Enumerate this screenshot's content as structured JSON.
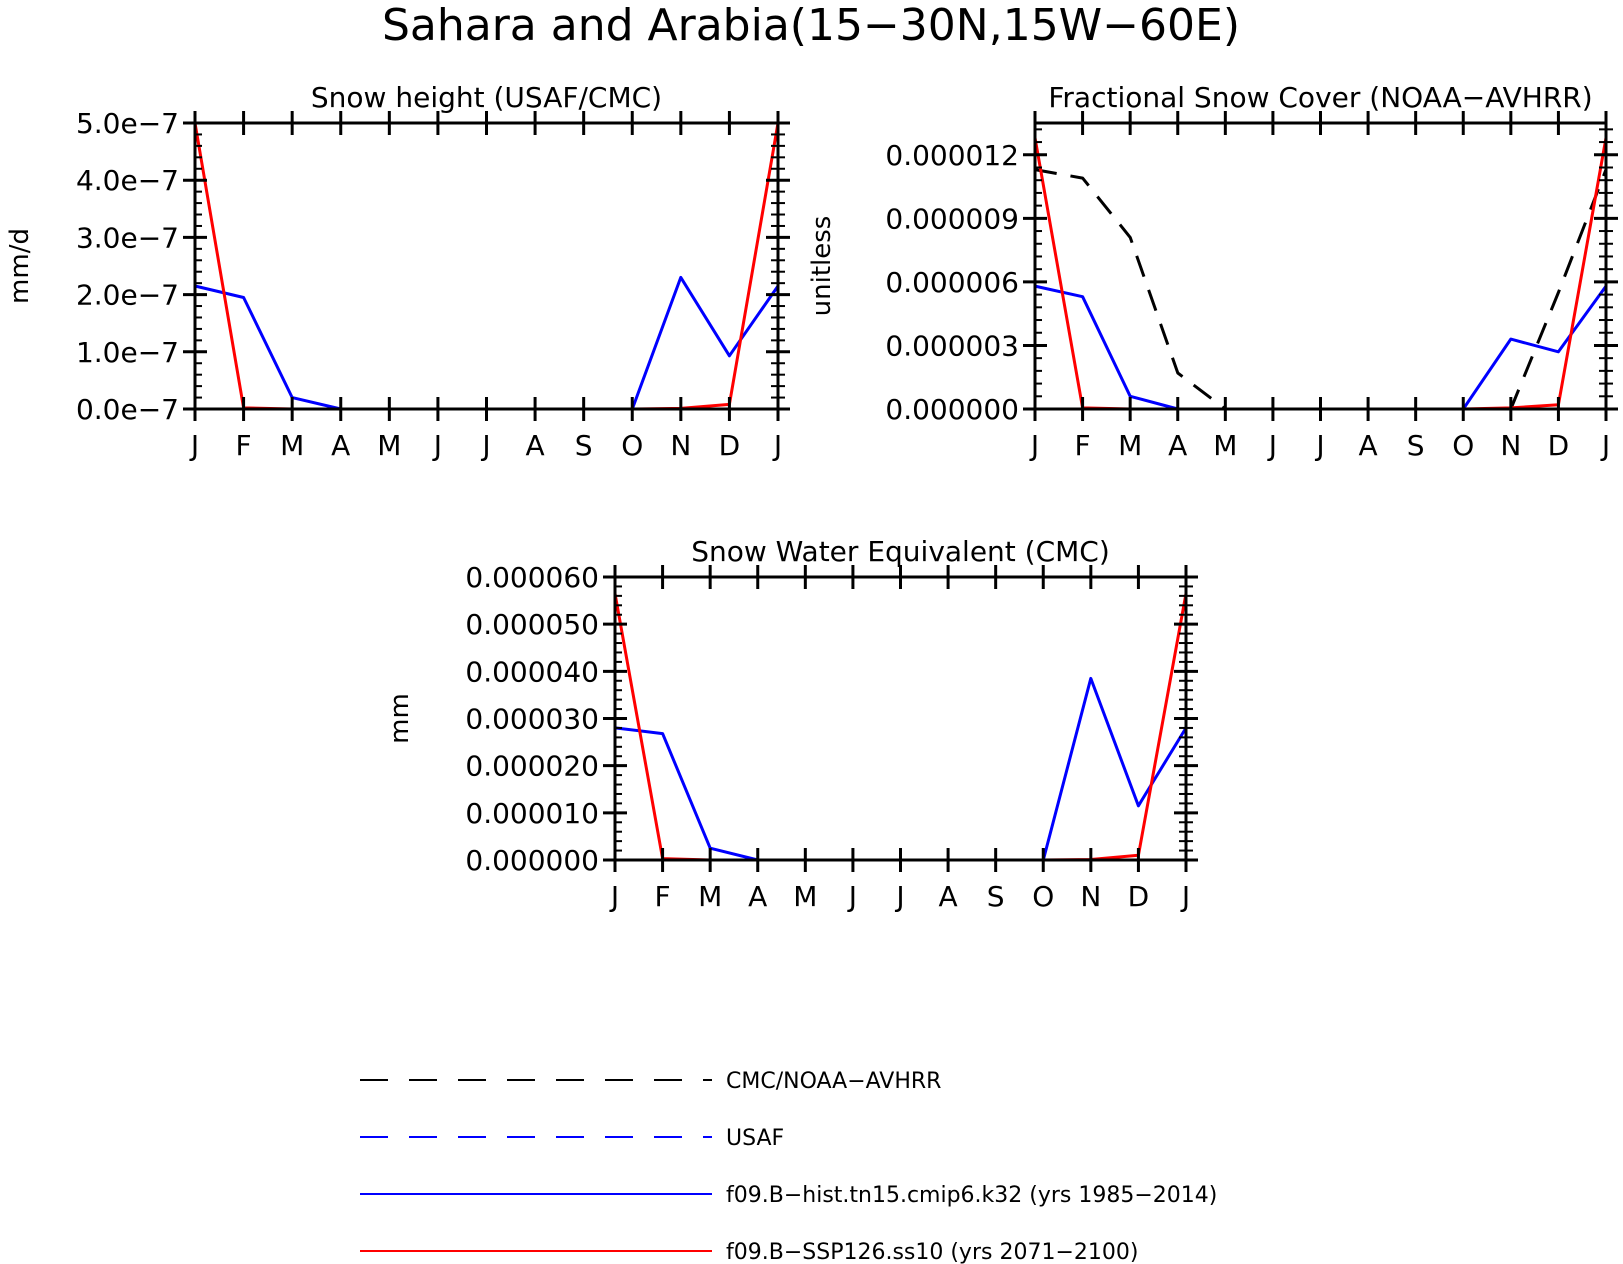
{
  "page": {
    "title": "Sahara and Arabia(15−30N,15W−60E)"
  },
  "colors": {
    "axes": "#000000",
    "obs_cmc": "#000000",
    "obs_usaf": "#0000ff",
    "hist": "#0000ff",
    "ssp": "#ff0000"
  },
  "chart_data": [
    {
      "type": "line",
      "title": "Snow height (USAF/CMC)",
      "ylabel": "mm/d",
      "xlabel": "",
      "categories": [
        "J",
        "F",
        "M",
        "A",
        "M",
        "J",
        "J",
        "A",
        "S",
        "O",
        "N",
        "D",
        "J"
      ],
      "ylim": [
        0,
        5e-07
      ],
      "yticks": [
        0,
        1e-07,
        2e-07,
        3e-07,
        4e-07,
        5e-07
      ],
      "ytick_labels": [
        "0.0e−7",
        "1.0e−7",
        "2.0e−7",
        "3.0e−7",
        "4.0e−7",
        "5.0e−7"
      ],
      "series": [
        {
          "key": "hist",
          "name": "f09.B−hist.tn15.cmip6.k32 (yrs 1985−2014)",
          "style": "solid",
          "values": [
            2.15e-07,
            1.95e-07,
            2e-08,
            0,
            0,
            0,
            0,
            0,
            0,
            0,
            2.3e-07,
            9.3e-08,
            2.15e-07
          ]
        },
        {
          "key": "ssp",
          "name": "f09.B−SSP126.ss10 (yrs 2071−2100)",
          "style": "solid",
          "values": [
            5e-07,
            2e-09,
            0,
            0,
            0,
            0,
            0,
            0,
            0,
            0,
            1e-09,
            8e-09,
            5e-07
          ]
        }
      ]
    },
    {
      "type": "line",
      "title": "Fractional Snow Cover (NOAA−AVHRR)",
      "ylabel": "unitless",
      "xlabel": "",
      "categories": [
        "J",
        "F",
        "M",
        "A",
        "M",
        "J",
        "J",
        "A",
        "S",
        "O",
        "N",
        "D",
        "J"
      ],
      "ylim": [
        0,
        1.35e-05
      ],
      "yticks": [
        0,
        3e-06,
        6e-06,
        9e-06,
        1.2e-05
      ],
      "ytick_labels": [
        "0.000000",
        "0.000003",
        "0.000006",
        "0.000009",
        "0.000012"
      ],
      "series": [
        {
          "key": "obs_cmc",
          "name": "CMC/NOAA−AVHRR",
          "style": "dashed",
          "values": [
            1.13e-05,
            1.09e-05,
            8.1e-06,
            1.7e-06,
            0,
            0,
            0,
            0,
            0,
            0,
            0,
            5.5e-06,
            1.13e-05
          ]
        },
        {
          "key": "hist",
          "name": "f09.B−hist.tn15.cmip6.k32 (yrs 1985−2014)",
          "style": "solid",
          "values": [
            5.8e-06,
            5.3e-06,
            6e-07,
            0,
            0,
            0,
            0,
            0,
            0,
            0,
            3.3e-06,
            2.7e-06,
            5.8e-06
          ]
        },
        {
          "key": "ssp",
          "name": "f09.B−SSP126.ss10 (yrs 2071−2100)",
          "style": "solid",
          "values": [
            1.28e-05,
            5e-08,
            0,
            0,
            0,
            0,
            0,
            0,
            0,
            0,
            5e-08,
            2e-07,
            1.28e-05
          ]
        }
      ]
    },
    {
      "type": "line",
      "title": "Snow Water Equivalent (CMC)",
      "ylabel": "mm",
      "xlabel": "",
      "categories": [
        "J",
        "F",
        "M",
        "A",
        "M",
        "J",
        "J",
        "A",
        "S",
        "O",
        "N",
        "D",
        "J"
      ],
      "ylim": [
        0,
        6e-05
      ],
      "yticks": [
        0,
        1e-05,
        2e-05,
        3e-05,
        4e-05,
        5e-05,
        6e-05
      ],
      "ytick_labels": [
        "0.000000",
        "0.000010",
        "0.000020",
        "0.000030",
        "0.000040",
        "0.000050",
        "0.000060"
      ],
      "series": [
        {
          "key": "hist",
          "name": "f09.B−hist.tn15.cmip6.k32 (yrs 1985−2014)",
          "style": "solid",
          "values": [
            2.8e-05,
            2.68e-05,
            2.5e-06,
            0,
            0,
            0,
            0,
            0,
            0,
            0,
            3.85e-05,
            1.15e-05,
            2.8e-05
          ]
        },
        {
          "key": "ssp",
          "name": "f09.B−SSP126.ss10 (yrs 2071−2100)",
          "style": "solid",
          "values": [
            5.65e-05,
            3e-07,
            0,
            0,
            0,
            0,
            0,
            0,
            0,
            0,
            1e-07,
            1e-06,
            5.65e-05
          ]
        }
      ]
    }
  ],
  "legend": [
    {
      "key": "obs_cmc",
      "label": "CMC/NOAA−AVHRR",
      "style": "dashed",
      "color": "#000000"
    },
    {
      "key": "obs_usaf",
      "label": "USAF",
      "style": "dashed",
      "color": "#0000ff"
    },
    {
      "key": "hist",
      "label": "f09.B−hist.tn15.cmip6.k32 (yrs 1985−2014)",
      "style": "solid",
      "color": "#0000ff"
    },
    {
      "key": "ssp",
      "label": "f09.B−SSP126.ss10 (yrs 2071−2100)",
      "style": "solid",
      "color": "#ff0000"
    }
  ]
}
